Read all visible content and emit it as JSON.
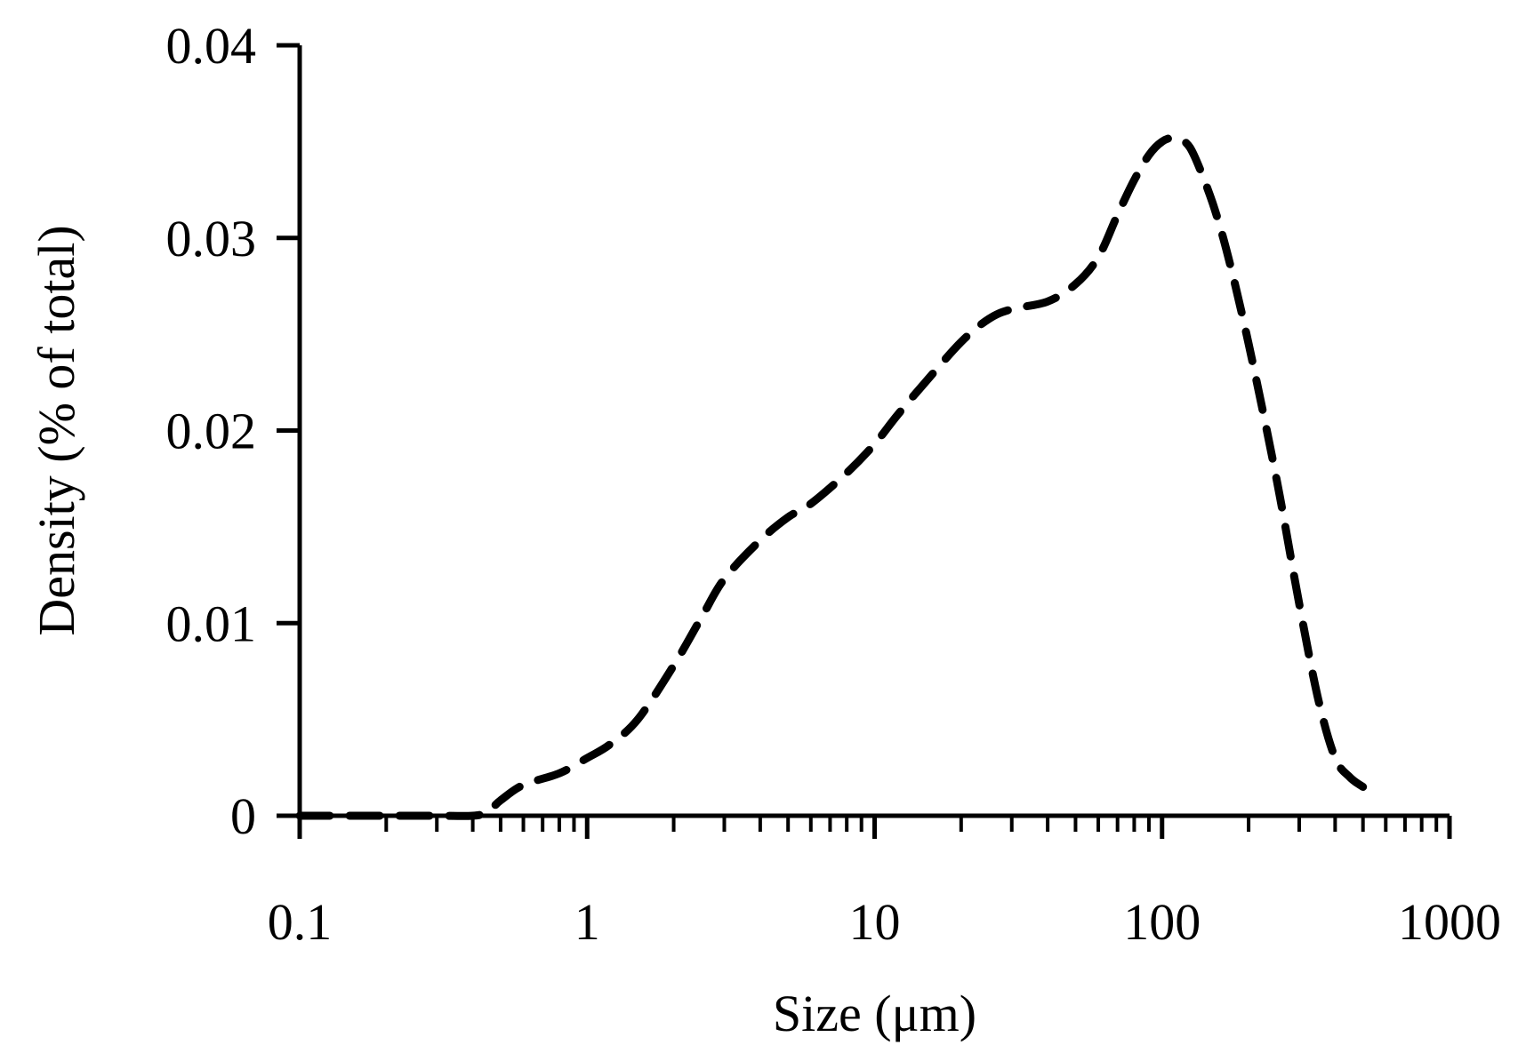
{
  "chart_data": {
    "type": "line",
    "title": "",
    "xlabel": "Size (μm)",
    "ylabel": "Density (% of total)",
    "x_scale": "log",
    "xlim": [
      0.1,
      1000
    ],
    "ylim": [
      0,
      0.04
    ],
    "x_ticks": [
      {
        "value": 0.1,
        "label": "0.1"
      },
      {
        "value": 1,
        "label": "1"
      },
      {
        "value": 10,
        "label": "10"
      },
      {
        "value": 100,
        "label": "100"
      },
      {
        "value": 1000,
        "label": "1000"
      }
    ],
    "y_ticks": [
      {
        "value": 0,
        "label": "0"
      },
      {
        "value": 0.01,
        "label": "0.01"
      },
      {
        "value": 0.02,
        "label": "0.02"
      },
      {
        "value": 0.03,
        "label": "0.03"
      },
      {
        "value": 0.04,
        "label": "0.04"
      }
    ],
    "grid": false,
    "legend": "none",
    "series": [
      {
        "color": "#000000",
        "line_style": "dashed",
        "x": [
          0.1,
          0.2,
          0.3,
          0.4,
          0.45,
          0.5,
          0.6,
          0.8,
          1.0,
          1.2,
          1.5,
          2,
          2.5,
          3,
          4,
          5,
          6,
          8,
          10,
          12,
          15,
          20,
          25,
          30,
          40,
          50,
          60,
          70,
          80,
          90,
          100,
          110,
          120,
          130,
          150,
          170,
          200,
          250,
          300,
          350,
          400,
          450,
          500
        ],
        "y": [
          0,
          0,
          0,
          0,
          0.0002,
          0.0008,
          0.0016,
          0.0022,
          0.003,
          0.0037,
          0.005,
          0.0078,
          0.0103,
          0.0123,
          0.0143,
          0.0155,
          0.0162,
          0.0178,
          0.0193,
          0.0208,
          0.0225,
          0.0246,
          0.0258,
          0.0263,
          0.0267,
          0.0276,
          0.029,
          0.0312,
          0.033,
          0.0343,
          0.035,
          0.0352,
          0.035,
          0.0342,
          0.0318,
          0.029,
          0.0245,
          0.0175,
          0.011,
          0.006,
          0.003,
          0.002,
          0.0015
        ]
      }
    ]
  }
}
